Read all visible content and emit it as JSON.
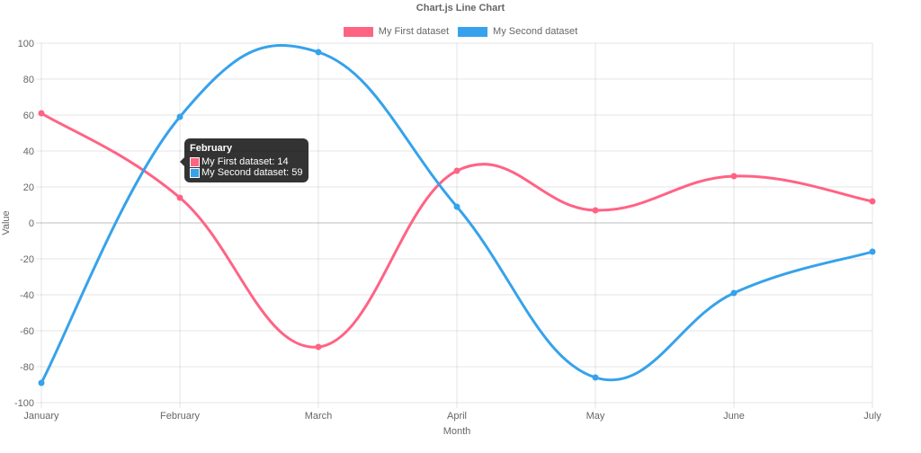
{
  "chart_data": {
    "type": "line",
    "title": "Chart.js Line Chart",
    "xlabel": "Month",
    "ylabel": "Value",
    "categories": [
      "January",
      "February",
      "March",
      "April",
      "May",
      "June",
      "July"
    ],
    "series": [
      {
        "name": "My First dataset",
        "color": "#ff6384",
        "values": [
          61,
          14,
          -69,
          29,
          7,
          26,
          12
        ]
      },
      {
        "name": "My Second dataset",
        "color": "#36a2eb",
        "values": [
          -89,
          59,
          95,
          9,
          -86,
          -39,
          -16
        ]
      }
    ],
    "ylim": [
      -100,
      100
    ],
    "yticks": [
      100,
      80,
      60,
      40,
      20,
      0,
      -20,
      -40,
      -60,
      -80,
      -100
    ],
    "grid": true,
    "legend_position": "top",
    "tooltip": {
      "title": "February",
      "lines": [
        "My First dataset: 14",
        "My Second dataset: 59"
      ]
    }
  }
}
